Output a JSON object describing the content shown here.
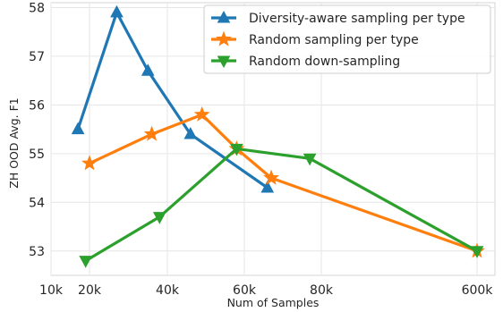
{
  "chart_data": {
    "type": "line",
    "xlabel": "Num of Samples",
    "ylabel": "ZH OOD Avg. F1",
    "x_ticks": [
      "10k",
      "20k",
      "40k",
      "60k",
      "80k",
      "600k"
    ],
    "y_ticks": [
      53,
      54,
      55,
      56,
      57,
      58
    ],
    "ylim": [
      52.5,
      58.1
    ],
    "grid": true,
    "legend_position": "top-right",
    "series": [
      {
        "name": "Diversity-aware sampling per type",
        "color": "#1f77b4",
        "marker": "triangle-up",
        "x": [
          "17k",
          "27k",
          "35k",
          "46k",
          "66k"
        ],
        "y": [
          55.5,
          57.9,
          56.7,
          55.4,
          54.3
        ]
      },
      {
        "name": "Random sampling per type",
        "color": "#ff7f0e",
        "marker": "star",
        "x": [
          "20k",
          "36k",
          "49k",
          "58k",
          "67k",
          "600k"
        ],
        "y": [
          54.8,
          55.4,
          55.8,
          55.1,
          54.5,
          53.0
        ]
      },
      {
        "name": "Random down-sampling",
        "color": "#2ca02c",
        "marker": "triangle-down",
        "x": [
          "19k",
          "38k",
          "58k",
          "77k",
          "600k"
        ],
        "y": [
          52.8,
          53.7,
          55.1,
          54.9,
          53.0
        ]
      }
    ]
  }
}
